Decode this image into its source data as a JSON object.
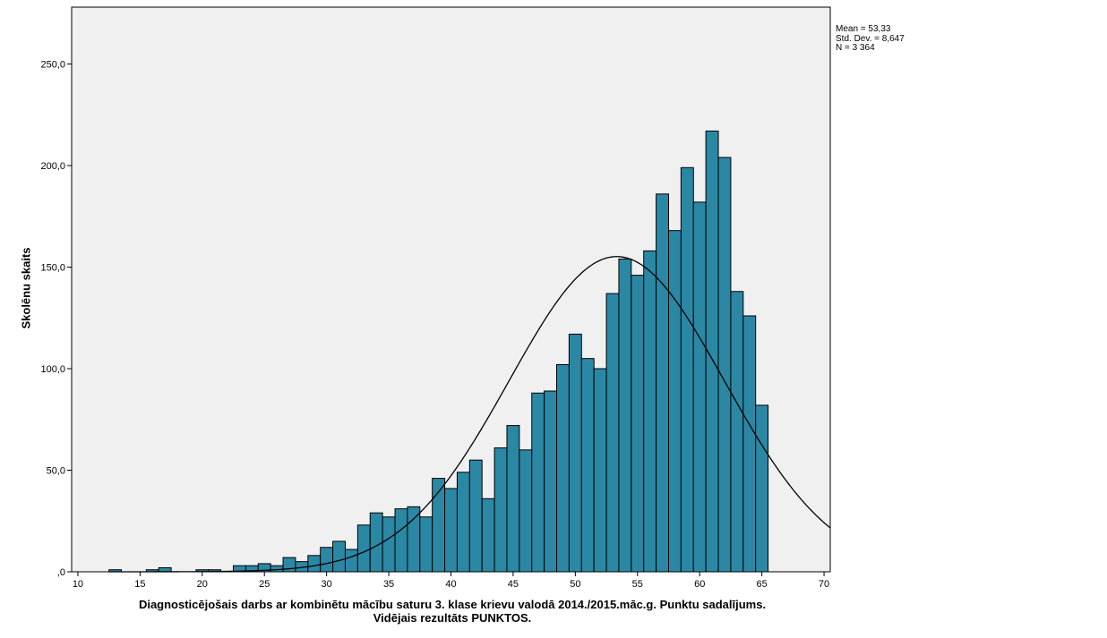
{
  "chart_data": {
    "type": "bar",
    "subtype": "histogram",
    "xlabel_line1": "Diagnosticējošais darbs ar kombinētu mācību saturu 3. klase krievu valodā 2014./2015.māc.g. Punktu sadalījums.",
    "xlabel_line2": "Vidējais rezultāts PUNKTOS.",
    "ylabel": "Skolēnu skaits",
    "xlim": [
      9.5,
      70.5
    ],
    "ylim": [
      0,
      278
    ],
    "x_ticks": [
      10,
      15,
      20,
      25,
      30,
      35,
      40,
      45,
      50,
      55,
      60,
      65,
      70
    ],
    "x_tick_labels": [
      "10",
      "15",
      "20",
      "25",
      "30",
      "35",
      "40",
      "45",
      "50",
      "55",
      "60",
      "65",
      "70"
    ],
    "y_ticks": [
      0,
      50,
      100,
      150,
      200,
      250
    ],
    "y_tick_labels": [
      ",0",
      "50,0",
      "100,0",
      "150,0",
      "200,0",
      "250,0"
    ],
    "bin_width": 1,
    "x": [
      13,
      16,
      17,
      20,
      21,
      23,
      24,
      25,
      26,
      27,
      28,
      29,
      30,
      31,
      32,
      33,
      34,
      35,
      36,
      37,
      38,
      39,
      40,
      41,
      42,
      43,
      44,
      45,
      46,
      47,
      48,
      49,
      50,
      51,
      52,
      53,
      54,
      55,
      56,
      57,
      58,
      59,
      60,
      61,
      62,
      63,
      64,
      65
    ],
    "values": [
      1,
      1,
      2,
      1,
      1,
      3,
      3,
      4,
      3,
      7,
      5,
      8,
      12,
      15,
      11,
      23,
      29,
      27,
      31,
      32,
      27,
      46,
      41,
      49,
      55,
      36,
      61,
      72,
      60,
      88,
      89,
      102,
      117,
      105,
      100,
      137,
      154,
      146,
      158,
      186,
      168,
      199,
      182,
      217,
      204,
      138,
      126,
      82
    ],
    "normal_curve": {
      "mean": 53.33,
      "std_dev": 8.647,
      "n": 3364
    },
    "stats_text": [
      "Mean = 53,33",
      "Std. Dev. = 8,647",
      "N = 3 364"
    ],
    "grid": false,
    "legend": "none",
    "colors": {
      "bar_fill": "#2b88a5",
      "bar_stroke": "#000000",
      "plot_background": "#f0f0f0",
      "curve": "#000000"
    }
  }
}
